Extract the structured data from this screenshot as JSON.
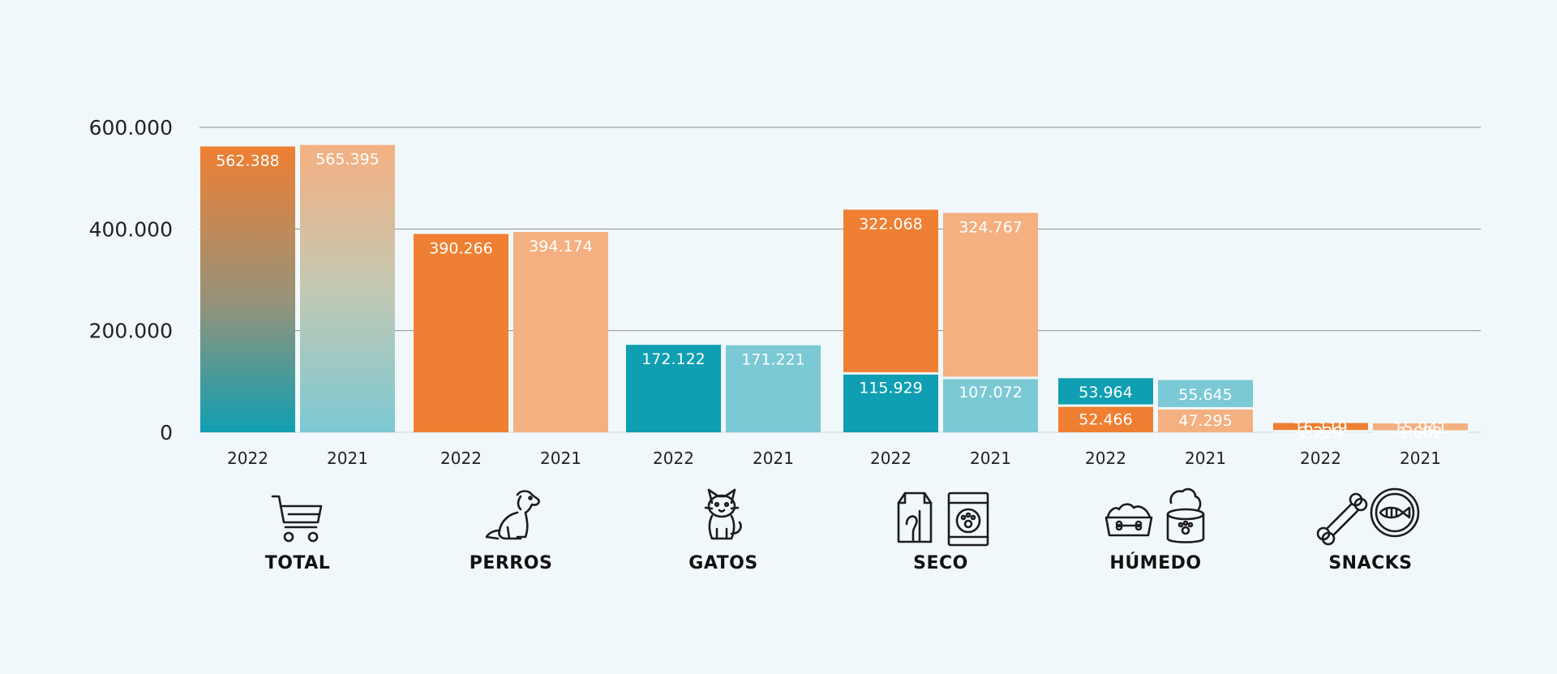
{
  "colors": {
    "background": "#f1f8fb",
    "y2022_orange": "#ef7f32",
    "y2021_orange": "#f4b081",
    "y2022_teal": "#109fb2",
    "y2021_teal": "#7bc9d4",
    "gridline": "#8f8f8f"
  },
  "chart_data": {
    "type": "bar",
    "ylim": [
      0,
      600000
    ],
    "y_ticks": [
      {
        "value": 0,
        "label": "0"
      },
      {
        "value": 200000,
        "label": "200.000"
      },
      {
        "value": 400000,
        "label": "400.000"
      },
      {
        "value": 600000,
        "label": "600.000"
      }
    ],
    "grid": true,
    "groups": [
      {
        "category": "TOTAL",
        "icon": "shopping-cart-icon",
        "bars": [
          {
            "year": "2022",
            "style": "gradient-2022",
            "segments": [
              {
                "value": 562388,
                "label": "562.388",
                "color": "gradient"
              }
            ]
          },
          {
            "year": "2021",
            "style": "gradient-2021",
            "segments": [
              {
                "value": 565395,
                "label": "565.395",
                "color": "gradient"
              }
            ]
          }
        ]
      },
      {
        "category": "PERROS",
        "icon": "dog-icon",
        "bars": [
          {
            "year": "2022",
            "segments": [
              {
                "value": 390266,
                "label": "390.266",
                "color": "y2022_orange"
              }
            ]
          },
          {
            "year": "2021",
            "segments": [
              {
                "value": 394174,
                "label": "394.174",
                "color": "y2021_orange"
              }
            ]
          }
        ]
      },
      {
        "category": "GATOS",
        "icon": "cat-icon",
        "bars": [
          {
            "year": "2022",
            "segments": [
              {
                "value": 172122,
                "label": "172.122",
                "color": "y2022_teal"
              }
            ]
          },
          {
            "year": "2021",
            "segments": [
              {
                "value": 171221,
                "label": "171.221",
                "color": "y2021_teal"
              }
            ]
          }
        ]
      },
      {
        "category": "SECO",
        "icon": "dry-food-bags-icon",
        "bars": [
          {
            "year": "2022",
            "segments": [
              {
                "value": 115929,
                "label": "115.929",
                "color": "y2022_teal"
              },
              {
                "value": 322068,
                "label": "322.068",
                "color": "y2022_orange"
              }
            ]
          },
          {
            "year": "2021",
            "segments": [
              {
                "value": 107072,
                "label": "107.072",
                "color": "y2021_teal"
              },
              {
                "value": 324767,
                "label": "324.767",
                "color": "y2021_orange"
              }
            ]
          }
        ]
      },
      {
        "category": "HÚMEDO",
        "icon": "wet-food-bowls-icon",
        "bars": [
          {
            "year": "2022",
            "segments": [
              {
                "value": 52466,
                "label": "52.466",
                "color": "y2022_orange"
              },
              {
                "value": 53964,
                "label": "53.964",
                "color": "y2022_teal"
              }
            ]
          },
          {
            "year": "2021",
            "segments": [
              {
                "value": 47295,
                "label": "47.295",
                "color": "y2021_orange"
              },
              {
                "value": 55645,
                "label": "55.645",
                "color": "y2021_teal"
              }
            ]
          }
        ]
      },
      {
        "category": "SNACKS",
        "icon": "bone-and-fish-icon",
        "bars": [
          {
            "year": "2022",
            "segments": [
              {
                "value": 2229,
                "label": "2.229",
                "color": "y2022_teal"
              },
              {
                "value": 16119,
                "label": "16.119",
                "color": "y2022_orange"
              }
            ]
          },
          {
            "year": "2021",
            "segments": [
              {
                "value": 1682,
                "label": "1.682",
                "color": "y2021_teal"
              },
              {
                "value": 15941,
                "label": "15.941",
                "color": "y2021_orange"
              }
            ]
          }
        ]
      }
    ]
  }
}
